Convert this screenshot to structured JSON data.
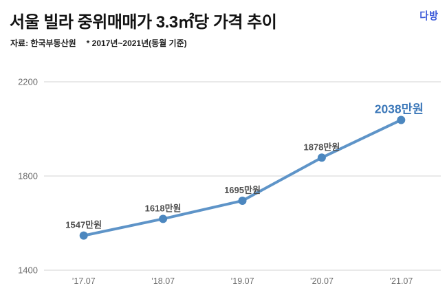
{
  "header": {
    "title": "서울 빌라 중위매매가 3.3㎡당 가격 추이",
    "source": "자료: 한국부동산원",
    "note": "* 2017년~2021년(동월 기준)",
    "logo_text": "다방",
    "logo_color": "#3D5BD9",
    "title_color": "#121212"
  },
  "chart_data": {
    "type": "line",
    "title": "서울 빌라 중위매매가 3.3㎡당 가격 추이",
    "subtitle": "자료: 한국부동산원 * 2017년~2021년(동월 기준)",
    "categories": [
      "’17.07",
      "’18.07",
      "’19.07",
      "’20.07",
      "’21.07"
    ],
    "values": [
      1547,
      1618,
      1695,
      1878,
      2038
    ],
    "point_labels": [
      "1547만원",
      "1618만원",
      "1695만원",
      "1878만원",
      "2038만원"
    ],
    "highlight_index": 4,
    "unit": "만원",
    "xlabel": "",
    "ylabel": "",
    "yticks": [
      1400,
      1800,
      2200
    ],
    "ylim": [
      1400,
      2200
    ],
    "grid": "horizontal-only",
    "legend": "none",
    "colors": {
      "line": "#5E94C8",
      "marker": "#4C87BF",
      "label": "#4F4F4F",
      "highlight_label": "#3C78B9",
      "grid": "#DCDCDC",
      "axis_text": "#6E6E6E"
    }
  }
}
